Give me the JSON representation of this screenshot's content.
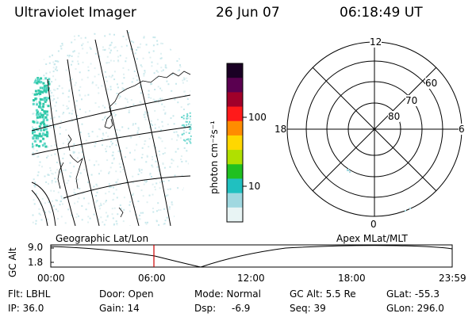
{
  "header": {
    "instrument": "Ultraviolet Imager",
    "date": "26 Jun 07",
    "time": "06:18:49 UT"
  },
  "colorbar": {
    "unit_label": "photon cm⁻²s⁻¹",
    "ticks": [
      "100",
      "10"
    ],
    "colors": [
      "#1a0024",
      "#5a0050",
      "#a0002a",
      "#ff1a1a",
      "#ff8c00",
      "#ffd700",
      "#b0e000",
      "#20c020",
      "#20c0c0",
      "#a0d8e0",
      "#e8f4f4"
    ]
  },
  "polar_plot": {
    "mlt_labels": {
      "top": "12",
      "left": "18",
      "right": "6",
      "bottom": "0"
    },
    "lat_labels": [
      "60",
      "70",
      "80"
    ]
  },
  "timeline": {
    "left_label": "Geographic Lat/Lon",
    "right_label": "Apex MLat/MLT",
    "y_label": "GC Alt",
    "y_ticks": [
      "9.0",
      "1.8"
    ],
    "x_ticks": [
      "00:00",
      "06:00",
      "12:00",
      "18:00",
      "23:59"
    ],
    "current_time_marker_color": "#cc0000"
  },
  "info": {
    "flt": "Flt: LBHL",
    "door": "Door: Open",
    "mode": "Mode: Normal",
    "gc_alt": "GC Alt: 5.5 Re",
    "glat": "GLat: -55.3",
    "ip": "IP: 36.0",
    "gain": "Gain: 14",
    "dsp_label": "Dsp:",
    "dsp_value": "-6.9",
    "seq": "Seq: 39",
    "glon": "GLon: 296.0"
  }
}
